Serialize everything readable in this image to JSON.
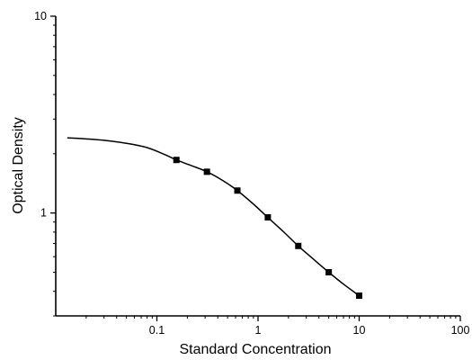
{
  "chart_data": {
    "type": "scatter",
    "xlabel": "Standard Concentration",
    "ylabel": "Optical Density",
    "xscale": "log",
    "yscale": "log",
    "xlim": [
      0.01,
      100
    ],
    "ylim": [
      0.3,
      10
    ],
    "x_ticks": [
      {
        "value": 0.1,
        "label": "0.1"
      },
      {
        "value": 1,
        "label": "1"
      },
      {
        "value": 10,
        "label": "10"
      },
      {
        "value": 100,
        "label": "100"
      }
    ],
    "y_ticks": [
      {
        "value": 1,
        "label": "1"
      },
      {
        "value": 10,
        "label": "10"
      }
    ],
    "grid": false,
    "legend": "none",
    "marker_color": "#000000",
    "line_color": "#000000",
    "series": [
      {
        "points": [
          {
            "x": 0.156,
            "y": 1.86
          },
          {
            "x": 0.3125,
            "y": 1.62
          },
          {
            "x": 0.625,
            "y": 1.3
          },
          {
            "x": 1.25,
            "y": 0.95
          },
          {
            "x": 2.5,
            "y": 0.68
          },
          {
            "x": 5,
            "y": 0.5
          },
          {
            "x": 10,
            "y": 0.38
          }
        ]
      }
    ],
    "fit_curve": {
      "x_range": [
        0.013,
        10
      ],
      "points": [
        {
          "x": 0.013,
          "y": 2.41
        },
        {
          "x": 0.02,
          "y": 2.38
        },
        {
          "x": 0.03,
          "y": 2.34
        },
        {
          "x": 0.05,
          "y": 2.26
        },
        {
          "x": 0.08,
          "y": 2.15
        },
        {
          "x": 0.12,
          "y": 1.98
        },
        {
          "x": 0.156,
          "y": 1.86
        },
        {
          "x": 0.22,
          "y": 1.74
        },
        {
          "x": 0.3125,
          "y": 1.62
        },
        {
          "x": 0.45,
          "y": 1.46
        },
        {
          "x": 0.625,
          "y": 1.3
        },
        {
          "x": 0.9,
          "y": 1.11
        },
        {
          "x": 1.25,
          "y": 0.95
        },
        {
          "x": 1.8,
          "y": 0.8
        },
        {
          "x": 2.5,
          "y": 0.68
        },
        {
          "x": 3.5,
          "y": 0.585
        },
        {
          "x": 5,
          "y": 0.5
        },
        {
          "x": 7,
          "y": 0.435
        },
        {
          "x": 10,
          "y": 0.38
        }
      ]
    }
  }
}
